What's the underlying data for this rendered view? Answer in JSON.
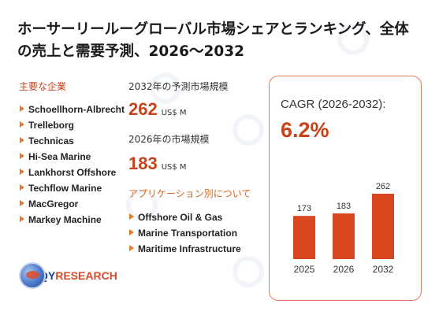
{
  "title": "ホーサーリールーグローバル市場シェアとランキング、全体の売上と需要予測、2026～2032",
  "companies_label": "主要な企業",
  "companies": [
    "Schoellhorn-Albrecht",
    "Trelleborg",
    "Technicas",
    "Hi-Sea Marine",
    "Lankhorst Offshore",
    "Techflow Marine",
    "MacGregor",
    "Markey Machine"
  ],
  "forecast_label": "2032年の予測市場規模",
  "forecast_value": "262",
  "forecast_unit": "US$ M",
  "current_label": "2026年の市場規模",
  "current_value": "183",
  "current_unit": "US$ M",
  "applications_label": "アプリケーション別について",
  "applications": [
    "Offshore Oil & Gas",
    "Marine Transportation",
    "Maritime Infrastructure"
  ],
  "cagr_label": "CAGR (2026-2032):",
  "cagr_value": "6.2%",
  "logo": {
    "q": "QY",
    "r": "RESEARCH"
  },
  "colors": {
    "accent": "#c8421c",
    "bar": "#d9471f",
    "panel_border": "#e57a5a"
  },
  "chart_data": {
    "type": "bar",
    "categories": [
      "2025",
      "2026",
      "2032"
    ],
    "values": [
      173,
      183,
      262
    ],
    "title": "",
    "xlabel": "",
    "ylabel": "",
    "ylim": [
      0,
      262
    ]
  }
}
